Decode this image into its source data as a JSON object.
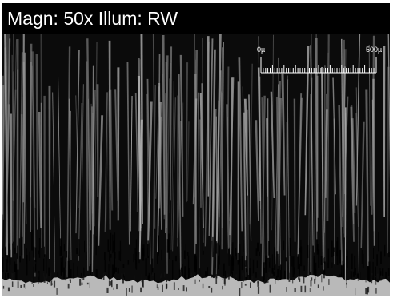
{
  "header": {
    "magnification_label": "Magn: 50x",
    "illumination_label": "Illum: RW"
  },
  "scale_bar": {
    "start_label": "0µ",
    "end_label": "500µ"
  },
  "colors": {
    "background": "#0b0b0b",
    "header_background": "#000000",
    "text": "#ffffff",
    "fibers": "#9a9a9a",
    "substrate": "#b9b9b9"
  }
}
